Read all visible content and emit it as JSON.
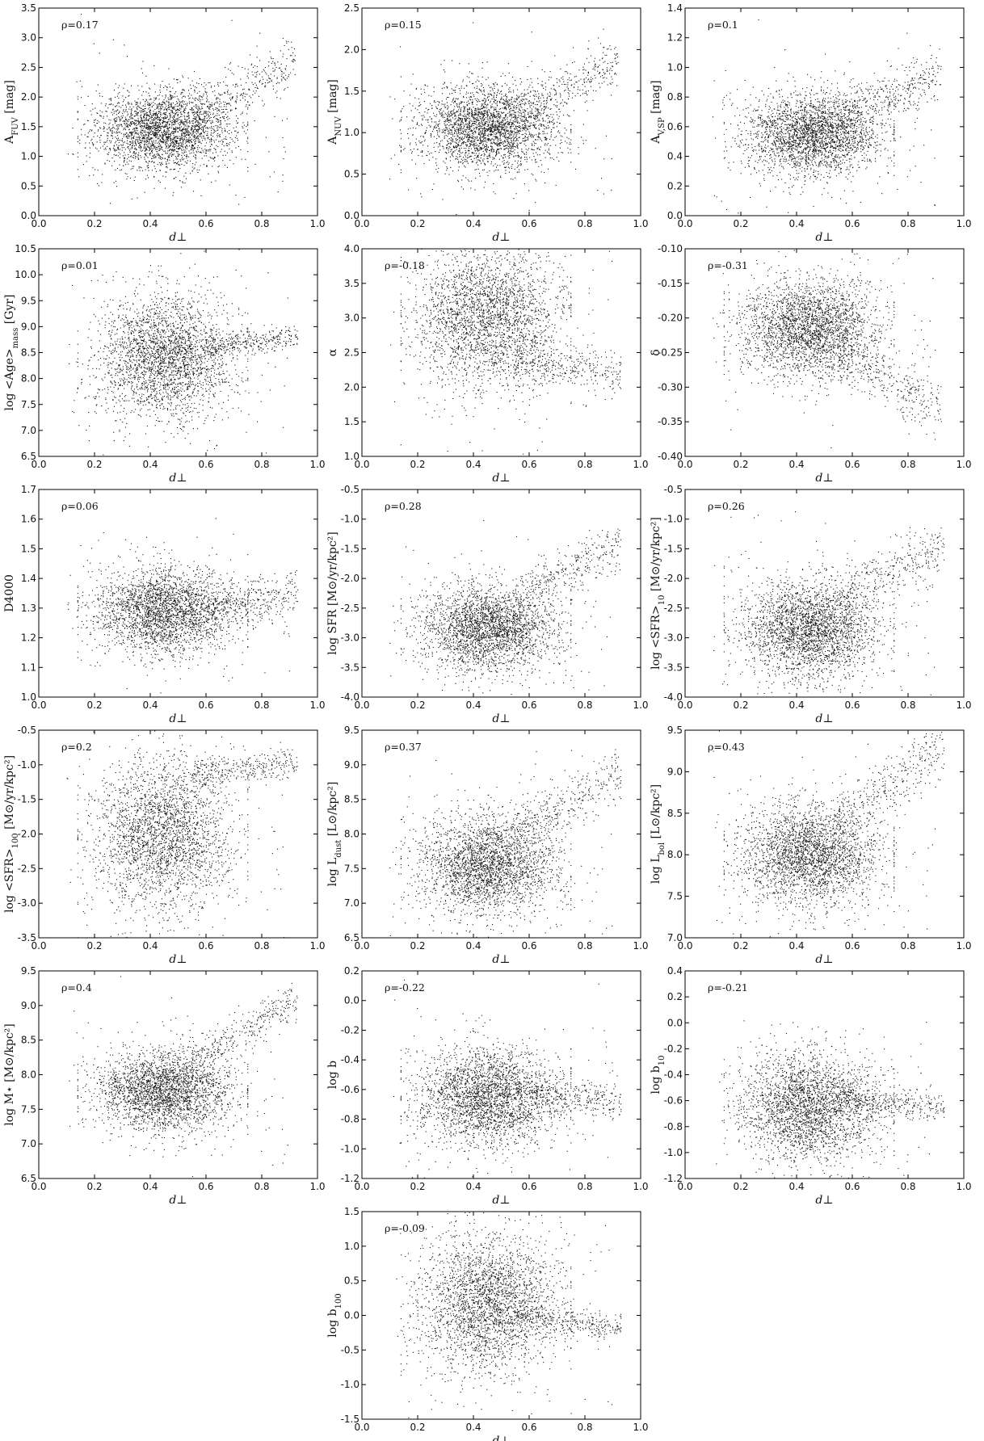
{
  "chart_data": [
    {
      "type": "scatter",
      "xlabel": "d⊥",
      "ylabel": "A_FUV [mag]",
      "annotation": "ρ=0.17",
      "xlim": [
        0,
        1
      ],
      "ylim": [
        0,
        3.5
      ],
      "xticks": [
        "0.0",
        "0.2",
        "0.4",
        "0.6",
        "0.8",
        "1.0"
      ],
      "yticks": [
        "0.0",
        "0.5",
        "1.0",
        "1.5",
        "2.0",
        "2.5",
        "3.0",
        "3.5"
      ],
      "cloud": {
        "x_center": 0.45,
        "x_spread": 0.12,
        "y_center": 1.45,
        "y_spread": 0.33
      },
      "trend": {
        "x0": 0.55,
        "y0": 1.7,
        "x1": 0.92,
        "y1": 2.6,
        "spread": 0.22
      }
    },
    {
      "type": "scatter",
      "xlabel": "d⊥",
      "ylabel": "A_NUV [mag]",
      "annotation": "ρ=0.15",
      "xlim": [
        0,
        1
      ],
      "ylim": [
        0,
        2.5
      ],
      "xticks": [
        "0.0",
        "0.2",
        "0.4",
        "0.6",
        "0.8",
        "1.0"
      ],
      "yticks": [
        "0.0",
        "0.5",
        "1.0",
        "1.5",
        "2.0",
        "2.5"
      ],
      "cloud": {
        "x_center": 0.45,
        "x_spread": 0.12,
        "y_center": 1.05,
        "y_spread": 0.25
      },
      "trend": {
        "x0": 0.55,
        "y0": 1.25,
        "x1": 0.92,
        "y1": 1.85,
        "spread": 0.15
      }
    },
    {
      "type": "scatter",
      "xlabel": "d⊥",
      "ylabel": "A_V,SP [mag]",
      "annotation": "ρ=0.1",
      "xlim": [
        0,
        1
      ],
      "ylim": [
        0,
        1.4
      ],
      "xticks": [
        "0.0",
        "0.2",
        "0.4",
        "0.6",
        "0.8",
        "1.0"
      ],
      "yticks": [
        "0.0",
        "0.2",
        "0.4",
        "0.6",
        "0.8",
        "1.0",
        "1.2",
        "1.4"
      ],
      "cloud": {
        "x_center": 0.46,
        "x_spread": 0.12,
        "y_center": 0.55,
        "y_spread": 0.14
      },
      "trend": {
        "x0": 0.55,
        "y0": 0.65,
        "x1": 0.92,
        "y1": 0.98,
        "spread": 0.08
      }
    },
    {
      "type": "scatter",
      "xlabel": "d⊥",
      "ylabel": "log <Age>_mass [Gyr]",
      "annotation": "ρ=0.01",
      "xlim": [
        0,
        1
      ],
      "ylim": [
        6.5,
        10.5
      ],
      "xticks": [
        "0.0",
        "0.2",
        "0.4",
        "0.6",
        "0.8",
        "1.0"
      ],
      "yticks": [
        "6.5",
        "7.0",
        "7.5",
        "8.0",
        "8.5",
        "9.0",
        "9.5",
        "10.0",
        "10.5"
      ],
      "cloud": {
        "x_center": 0.45,
        "x_spread": 0.12,
        "y_center": 8.4,
        "y_spread": 0.6
      },
      "trend": {
        "x0": 0.6,
        "y0": 8.6,
        "x1": 0.93,
        "y1": 8.8,
        "spread": 0.12
      }
    },
    {
      "type": "scatter",
      "xlabel": "d⊥",
      "ylabel": "α",
      "annotation": "ρ=-0.18",
      "xlim": [
        0,
        1
      ],
      "ylim": [
        1,
        4
      ],
      "xticks": [
        "0.0",
        "0.2",
        "0.4",
        "0.6",
        "0.8",
        "1.0"
      ],
      "yticks": [
        "1.0",
        "1.5",
        "2.0",
        "2.5",
        "3.0",
        "3.5",
        "4.0"
      ],
      "cloud": {
        "x_center": 0.45,
        "x_spread": 0.13,
        "y_center": 3.0,
        "y_spread": 0.5
      },
      "trend": {
        "x0": 0.55,
        "y0": 2.4,
        "x1": 0.93,
        "y1": 2.15,
        "spread": 0.15
      }
    },
    {
      "type": "scatter",
      "xlabel": "d⊥",
      "ylabel": "δ",
      "annotation": "ρ=-0.31",
      "xlim": [
        0,
        1
      ],
      "ylim": [
        -0.4,
        -0.1
      ],
      "xticks": [
        "0.0",
        "0.2",
        "0.4",
        "0.6",
        "0.8",
        "1.0"
      ],
      "yticks": [
        "-0.40",
        "-0.35",
        "-0.30",
        "-0.25",
        "-0.20",
        "-0.15",
        "-0.10"
      ],
      "cloud": {
        "x_center": 0.45,
        "x_spread": 0.12,
        "y_center": -0.215,
        "y_spread": 0.035
      },
      "trend": {
        "x0": 0.55,
        "y0": -0.25,
        "x1": 0.92,
        "y1": -0.33,
        "spread": 0.02
      }
    },
    {
      "type": "scatter",
      "xlabel": "d⊥",
      "ylabel": "D4000",
      "annotation": "ρ=0.06",
      "xlim": [
        0,
        1
      ],
      "ylim": [
        1,
        1.7
      ],
      "xticks": [
        "0.0",
        "0.2",
        "0.4",
        "0.6",
        "0.8",
        "1.0"
      ],
      "yticks": [
        "1.0",
        "1.1",
        "1.2",
        "1.3",
        "1.4",
        "1.5",
        "1.6",
        "1.7"
      ],
      "cloud": {
        "x_center": 0.45,
        "x_spread": 0.12,
        "y_center": 1.29,
        "y_spread": 0.07
      },
      "trend": {
        "x0": 0.6,
        "y0": 1.3,
        "x1": 0.93,
        "y1": 1.35,
        "spread": 0.04
      }
    },
    {
      "type": "scatter",
      "xlabel": "d⊥",
      "ylabel": "log SFR [M⊙/yr/kpc²]",
      "annotation": "ρ=0.28",
      "xlim": [
        0,
        1
      ],
      "ylim": [
        -4,
        -0.5
      ],
      "xticks": [
        "0.0",
        "0.2",
        "0.4",
        "0.6",
        "0.8",
        "1.0"
      ],
      "yticks": [
        "-4.0",
        "-3.5",
        "-3.0",
        "-2.5",
        "-2.0",
        "-1.5",
        "-1.0",
        "-0.5"
      ],
      "cloud": {
        "x_center": 0.45,
        "x_spread": 0.12,
        "y_center": -2.85,
        "y_spread": 0.35
      },
      "trend": {
        "x0": 0.55,
        "y0": -2.3,
        "x1": 0.93,
        "y1": -1.45,
        "spread": 0.2
      }
    },
    {
      "type": "scatter",
      "xlabel": "d⊥",
      "ylabel": "log <SFR>_10 [M⊙/yr/kpc²]",
      "annotation": "ρ=0.26",
      "xlim": [
        0,
        1
      ],
      "ylim": [
        -4,
        -0.5
      ],
      "xticks": [
        "0.0",
        "0.2",
        "0.4",
        "0.6",
        "0.8",
        "1.0"
      ],
      "yticks": [
        "-4.0",
        "-3.5",
        "-3.0",
        "-2.5",
        "-2.0",
        "-1.5",
        "-1.0",
        "-0.5"
      ],
      "cloud": {
        "x_center": 0.45,
        "x_spread": 0.12,
        "y_center": -2.85,
        "y_spread": 0.4
      },
      "trend": {
        "x0": 0.55,
        "y0": -2.3,
        "x1": 0.93,
        "y1": -1.45,
        "spread": 0.22
      }
    },
    {
      "type": "scatter",
      "xlabel": "d⊥",
      "ylabel": "log <SFR>_100 [M⊙/yr/kpc²]",
      "annotation": "ρ=0.2",
      "xlim": [
        0,
        1
      ],
      "ylim": [
        -3.5,
        -0.5
      ],
      "xticks": [
        "0.0",
        "0.2",
        "0.4",
        "0.6",
        "0.8",
        "1.0"
      ],
      "yticks": [
        "-3.5",
        "-3.0",
        "-2.5",
        "-2.0",
        "-1.5",
        "-1.0",
        "-0.5"
      ],
      "cloud": {
        "x_center": 0.45,
        "x_spread": 0.12,
        "y_center": -2.0,
        "y_spread": 0.55
      },
      "trend": {
        "x0": 0.55,
        "y0": -1.15,
        "x1": 0.93,
        "y1": -0.95,
        "spread": 0.1
      }
    },
    {
      "type": "scatter",
      "xlabel": "d⊥",
      "ylabel": "log L_dust [L⊙/kpc²]",
      "annotation": "ρ=0.37",
      "xlim": [
        0,
        1
      ],
      "ylim": [
        6.5,
        9.5
      ],
      "xticks": [
        "0.0",
        "0.2",
        "0.4",
        "0.6",
        "0.8",
        "1.0"
      ],
      "yticks": [
        "6.5",
        "7.0",
        "7.5",
        "8.0",
        "8.5",
        "9.0",
        "9.5"
      ],
      "cloud": {
        "x_center": 0.45,
        "x_spread": 0.12,
        "y_center": 7.55,
        "y_spread": 0.35
      },
      "trend": {
        "x0": 0.55,
        "y0": 8.0,
        "x1": 0.93,
        "y1": 8.9,
        "spread": 0.2
      }
    },
    {
      "type": "scatter",
      "xlabel": "d⊥",
      "ylabel": "log L_bol [L⊙/kpc²]",
      "annotation": "ρ=0.43",
      "xlim": [
        0,
        1
      ],
      "ylim": [
        7,
        9.5
      ],
      "xticks": [
        "0.0",
        "0.2",
        "0.4",
        "0.6",
        "0.8",
        "1.0"
      ],
      "yticks": [
        "7.0",
        "7.5",
        "8.0",
        "8.5",
        "9.0",
        "9.5"
      ],
      "cloud": {
        "x_center": 0.45,
        "x_spread": 0.12,
        "y_center": 8.0,
        "y_spread": 0.3
      },
      "trend": {
        "x0": 0.55,
        "y0": 8.45,
        "x1": 0.93,
        "y1": 9.25,
        "spread": 0.18
      }
    },
    {
      "type": "scatter",
      "xlabel": "d⊥",
      "ylabel": "log M⋆ [M⊙/kpc²]",
      "annotation": "ρ=0.4",
      "xlim": [
        0,
        1
      ],
      "ylim": [
        6.5,
        9.5
      ],
      "xticks": [
        "0.0",
        "0.2",
        "0.4",
        "0.6",
        "0.8",
        "1.0"
      ],
      "yticks": [
        "6.5",
        "7.0",
        "7.5",
        "8.0",
        "8.5",
        "9.0",
        "9.5"
      ],
      "cloud": {
        "x_center": 0.45,
        "x_spread": 0.12,
        "y_center": 7.75,
        "y_spread": 0.28
      },
      "trend": {
        "x0": 0.55,
        "y0": 8.2,
        "x1": 0.93,
        "y1": 9.1,
        "spread": 0.15
      }
    },
    {
      "type": "scatter",
      "xlabel": "d⊥",
      "ylabel": "log b",
      "annotation": "ρ=-0.22",
      "xlim": [
        0,
        1
      ],
      "ylim": [
        -1.2,
        0.2
      ],
      "xticks": [
        "0.0",
        "0.2",
        "0.4",
        "0.6",
        "0.8",
        "1.0"
      ],
      "yticks": [
        "-1.2",
        "-1.0",
        "-0.8",
        "-0.6",
        "-0.4",
        "-0.2",
        "0.0",
        "0.2"
      ],
      "cloud": {
        "x_center": 0.45,
        "x_spread": 0.12,
        "y_center": -0.65,
        "y_spread": 0.16
      },
      "trend": {
        "x0": 0.55,
        "y0": -0.6,
        "x1": 0.93,
        "y1": -0.68,
        "spread": 0.06
      }
    },
    {
      "type": "scatter",
      "xlabel": "d⊥",
      "ylabel": "log b_10",
      "annotation": "ρ=-0.21",
      "xlim": [
        0,
        1
      ],
      "ylim": [
        -1.2,
        0.4
      ],
      "xticks": [
        "0.0",
        "0.2",
        "0.4",
        "0.6",
        "0.8",
        "1.0"
      ],
      "yticks": [
        "-1.2",
        "-1.0",
        "-0.8",
        "-0.6",
        "-0.4",
        "-0.2",
        "0.0",
        "0.2",
        "0.4"
      ],
      "cloud": {
        "x_center": 0.45,
        "x_spread": 0.12,
        "y_center": -0.65,
        "y_spread": 0.2
      },
      "trend": {
        "x0": 0.55,
        "y0": -0.6,
        "x1": 0.93,
        "y1": -0.66,
        "spread": 0.06
      }
    },
    {
      "type": "scatter",
      "xlabel": "d⊥",
      "ylabel": "log b_100",
      "annotation": "ρ=-0.09",
      "xlim": [
        0,
        1
      ],
      "ylim": [
        -1.5,
        1.5
      ],
      "xticks": [
        "0.0",
        "0.2",
        "0.4",
        "0.6",
        "0.8",
        "1.0"
      ],
      "yticks": [
        "-1.5",
        "-1.0",
        "-0.5",
        "0.0",
        "0.5",
        "1.0",
        "1.5"
      ],
      "cloud": {
        "x_center": 0.45,
        "x_spread": 0.12,
        "y_center": 0.15,
        "y_spread": 0.5
      },
      "trend": {
        "x0": 0.55,
        "y0": 0.0,
        "x1": 0.93,
        "y1": -0.18,
        "spread": 0.1
      }
    }
  ]
}
